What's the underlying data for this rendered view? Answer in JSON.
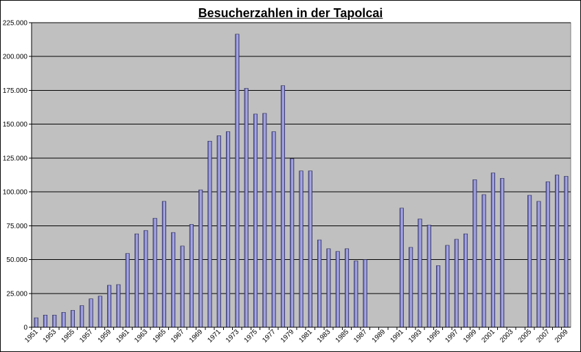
{
  "chart_data": {
    "type": "bar",
    "title": "Besucherzahlen in der Tapolcai",
    "xlabel": "",
    "ylabel": "",
    "ylim": [
      0,
      225000
    ],
    "yticks": [
      "0",
      "25.000",
      "50.000",
      "75.000",
      "100.000",
      "125.000",
      "150.000",
      "175.000",
      "200.000",
      "225.000"
    ],
    "grid": true,
    "legend": "none",
    "bar_color": "#8a8ae0",
    "plot_background": "#c0c0c0",
    "categories": [
      1951,
      1952,
      1953,
      1954,
      1955,
      1956,
      1957,
      1958,
      1959,
      1960,
      1961,
      1962,
      1963,
      1964,
      1965,
      1966,
      1967,
      1968,
      1969,
      1970,
      1971,
      1972,
      1973,
      1974,
      1975,
      1976,
      1977,
      1978,
      1979,
      1980,
      1981,
      1982,
      1983,
      1984,
      1985,
      1986,
      1987,
      1988,
      1989,
      1990,
      1991,
      1992,
      1993,
      1994,
      1995,
      1996,
      1997,
      1998,
      1999,
      2000,
      2001,
      2002,
      2003,
      2004,
      2005,
      2006,
      2007,
      2008,
      2009
    ],
    "xtick_labels": [
      "1951",
      "1953",
      "1955",
      "1957",
      "1959",
      "1961",
      "1963",
      "1965",
      "1967",
      "1969",
      "1971",
      "1973",
      "1975",
      "1977",
      "1979",
      "1981",
      "1983",
      "1985",
      "1987",
      "1989",
      "1991",
      "1993",
      "1995",
      "1997",
      "1999",
      "2001",
      "2003",
      "2005",
      "2007",
      "2009"
    ],
    "values": [
      7000,
      9000,
      9000,
      11000,
      12500,
      16000,
      21000,
      23000,
      31000,
      31500,
      54500,
      69000,
      71500,
      80500,
      93000,
      70000,
      60000,
      76000,
      101500,
      137500,
      141500,
      144500,
      216500,
      176500,
      157500,
      158000,
      144500,
      178500,
      124500,
      115500,
      115500,
      64500,
      58000,
      56000,
      58000,
      49000,
      50000,
      null,
      null,
      null,
      88000,
      59000,
      80000,
      75500,
      45500,
      60500,
      65000,
      69000,
      109000,
      98000,
      114000,
      110000,
      null,
      null,
      97500,
      93000,
      107500,
      112500,
      111500
    ]
  }
}
